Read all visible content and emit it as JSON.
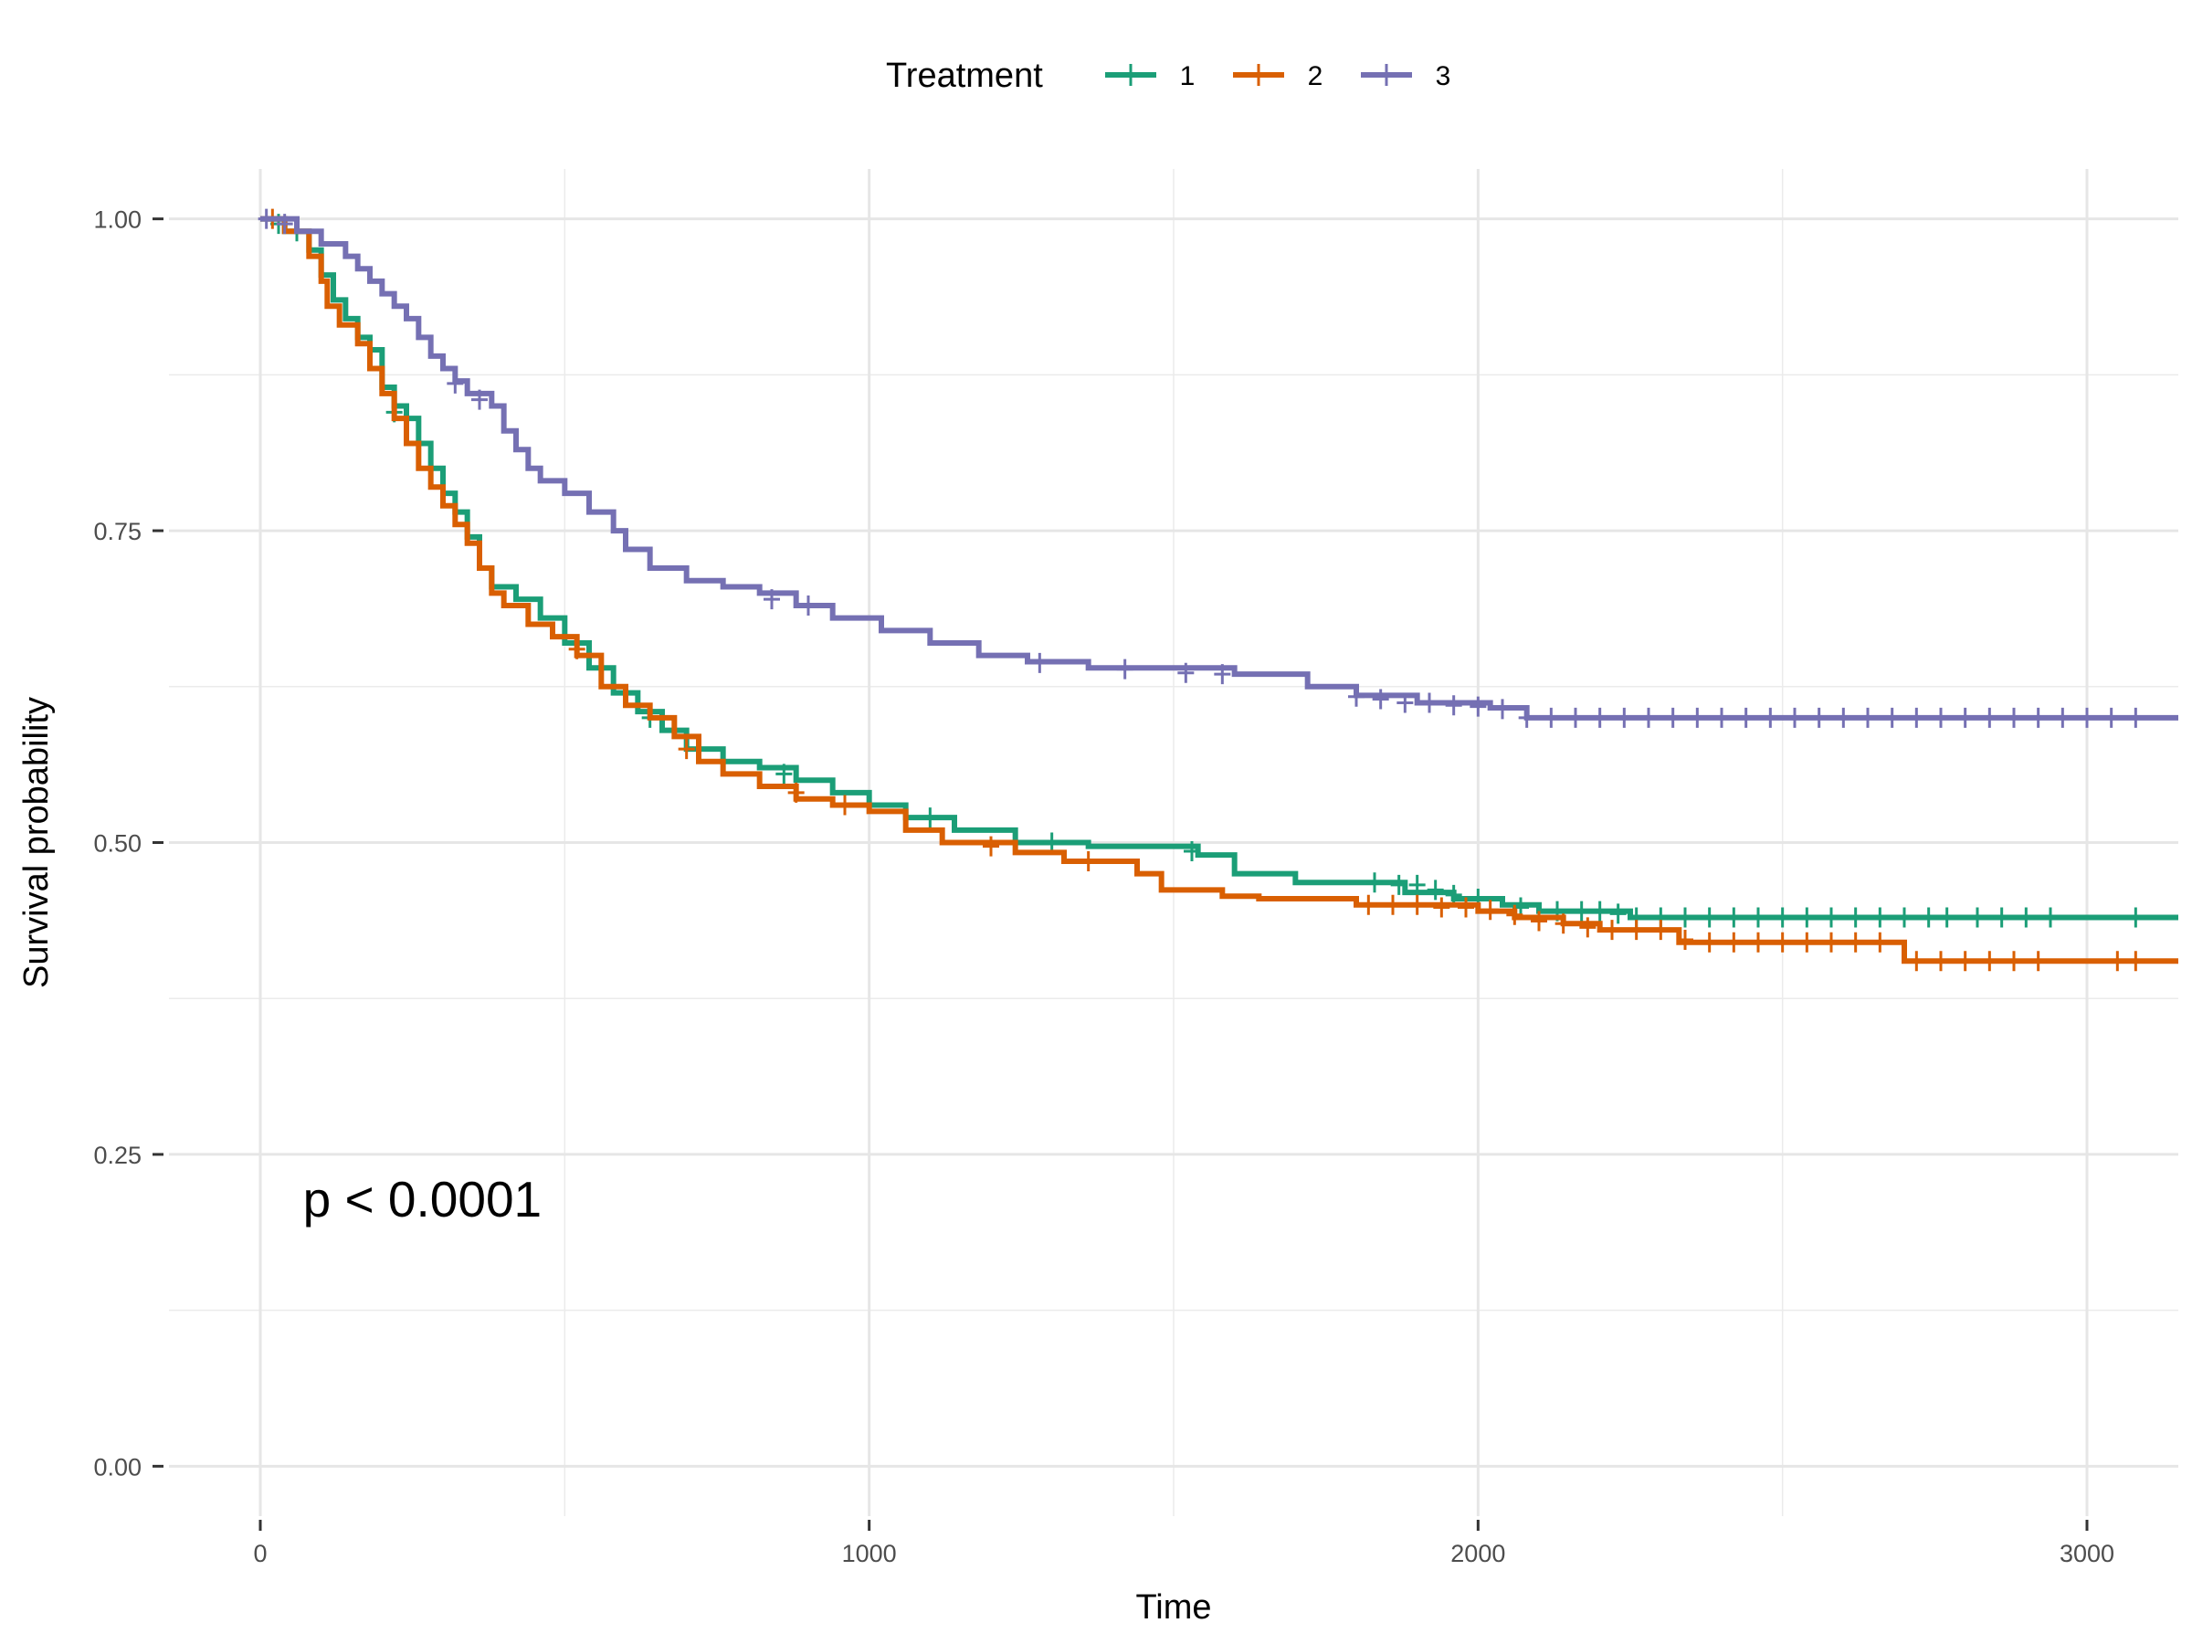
{
  "chart_data": {
    "type": "line",
    "subtype": "kaplan-meier-step",
    "xlabel": "Time",
    "ylabel": "Survival probability",
    "xlim": [
      -150,
      3150
    ],
    "ylim": [
      -0.04,
      1.04
    ],
    "x_ticks": [
      0,
      1000,
      2000,
      3000
    ],
    "x_tick_labels": [
      "0",
      "1000",
      "2000",
      "3000"
    ],
    "y_ticks": [
      0,
      0.25,
      0.5,
      0.75,
      1.0
    ],
    "y_tick_labels": [
      "0.00",
      "0.25",
      "0.50",
      "0.75",
      "1.00"
    ],
    "grid": true,
    "legend": {
      "title": "Treatment",
      "position": "top"
    },
    "annotation": {
      "text": "p < 0.0001",
      "x": 70,
      "y": 0.2
    },
    "series": [
      {
        "name": "1",
        "color": "#1b9e77",
        "points": [
          [
            0,
            1.0
          ],
          [
            40,
            0.99
          ],
          [
            80,
            0.975
          ],
          [
            100,
            0.955
          ],
          [
            120,
            0.935
          ],
          [
            140,
            0.92
          ],
          [
            160,
            0.905
          ],
          [
            180,
            0.895
          ],
          [
            200,
            0.865
          ],
          [
            220,
            0.85
          ],
          [
            240,
            0.84
          ],
          [
            260,
            0.82
          ],
          [
            280,
            0.8
          ],
          [
            300,
            0.78
          ],
          [
            320,
            0.765
          ],
          [
            340,
            0.745
          ],
          [
            360,
            0.72
          ],
          [
            380,
            0.705
          ],
          [
            420,
            0.695
          ],
          [
            460,
            0.68
          ],
          [
            500,
            0.66
          ],
          [
            540,
            0.64
          ],
          [
            580,
            0.62
          ],
          [
            620,
            0.605
          ],
          [
            660,
            0.59
          ],
          [
            700,
            0.575
          ],
          [
            760,
            0.565
          ],
          [
            820,
            0.56
          ],
          [
            880,
            0.55
          ],
          [
            940,
            0.54
          ],
          [
            1000,
            0.53
          ],
          [
            1060,
            0.52
          ],
          [
            1140,
            0.51
          ],
          [
            1240,
            0.5
          ],
          [
            1360,
            0.497
          ],
          [
            1540,
            0.49
          ],
          [
            1600,
            0.475
          ],
          [
            1700,
            0.468
          ],
          [
            1820,
            0.468
          ],
          [
            1880,
            0.46
          ],
          [
            1960,
            0.455
          ],
          [
            2040,
            0.45
          ],
          [
            2100,
            0.445
          ],
          [
            2250,
            0.44
          ],
          [
            3150,
            0.44
          ]
        ],
        "censors": [
          [
            30,
            0.996
          ],
          [
            60,
            0.99
          ],
          [
            220,
            0.845
          ],
          [
            640,
            0.6
          ],
          [
            860,
            0.555
          ],
          [
            1100,
            0.52
          ],
          [
            1300,
            0.5
          ],
          [
            1530,
            0.493
          ],
          [
            1830,
            0.468
          ],
          [
            1870,
            0.466
          ],
          [
            1900,
            0.466
          ],
          [
            1930,
            0.462
          ],
          [
            1960,
            0.458
          ],
          [
            2000,
            0.455
          ],
          [
            2070,
            0.448
          ],
          [
            2130,
            0.445
          ],
          [
            2170,
            0.445
          ],
          [
            2200,
            0.445
          ],
          [
            2230,
            0.443
          ],
          [
            2260,
            0.44
          ],
          [
            2300,
            0.44
          ],
          [
            2340,
            0.44
          ],
          [
            2380,
            0.44
          ],
          [
            2420,
            0.44
          ],
          [
            2460,
            0.44
          ],
          [
            2500,
            0.44
          ],
          [
            2540,
            0.44
          ],
          [
            2580,
            0.44
          ],
          [
            2620,
            0.44
          ],
          [
            2660,
            0.44
          ],
          [
            2700,
            0.44
          ],
          [
            2740,
            0.44
          ],
          [
            2770,
            0.44
          ],
          [
            2820,
            0.44
          ],
          [
            2860,
            0.44
          ],
          [
            2900,
            0.44
          ],
          [
            2940,
            0.44
          ],
          [
            3080,
            0.44
          ]
        ]
      },
      {
        "name": "2",
        "color": "#d95f02",
        "points": [
          [
            0,
            1.0
          ],
          [
            40,
            0.99
          ],
          [
            80,
            0.97
          ],
          [
            100,
            0.95
          ],
          [
            110,
            0.93
          ],
          [
            130,
            0.915
          ],
          [
            160,
            0.9
          ],
          [
            180,
            0.88
          ],
          [
            200,
            0.86
          ],
          [
            220,
            0.84
          ],
          [
            240,
            0.82
          ],
          [
            260,
            0.8
          ],
          [
            280,
            0.785
          ],
          [
            300,
            0.77
          ],
          [
            320,
            0.755
          ],
          [
            340,
            0.74
          ],
          [
            360,
            0.72
          ],
          [
            380,
            0.7
          ],
          [
            400,
            0.69
          ],
          [
            440,
            0.675
          ],
          [
            480,
            0.665
          ],
          [
            520,
            0.65
          ],
          [
            560,
            0.625
          ],
          [
            600,
            0.61
          ],
          [
            640,
            0.6
          ],
          [
            680,
            0.585
          ],
          [
            720,
            0.565
          ],
          [
            760,
            0.555
          ],
          [
            820,
            0.545
          ],
          [
            880,
            0.535
          ],
          [
            940,
            0.53
          ],
          [
            1000,
            0.525
          ],
          [
            1060,
            0.51
          ],
          [
            1120,
            0.5
          ],
          [
            1240,
            0.492
          ],
          [
            1320,
            0.485
          ],
          [
            1440,
            0.475
          ],
          [
            1480,
            0.462
          ],
          [
            1580,
            0.457
          ],
          [
            1640,
            0.455
          ],
          [
            1800,
            0.45
          ],
          [
            2000,
            0.445
          ],
          [
            2060,
            0.44
          ],
          [
            2140,
            0.435
          ],
          [
            2200,
            0.43
          ],
          [
            2330,
            0.42
          ],
          [
            2700,
            0.405
          ],
          [
            3150,
            0.405
          ]
        ],
        "censors": [
          [
            20,
            1.0
          ],
          [
            520,
            0.655
          ],
          [
            700,
            0.575
          ],
          [
            880,
            0.54
          ],
          [
            960,
            0.53
          ],
          [
            1200,
            0.497
          ],
          [
            1360,
            0.485
          ],
          [
            1820,
            0.45
          ],
          [
            1860,
            0.45
          ],
          [
            1900,
            0.45
          ],
          [
            1940,
            0.448
          ],
          [
            1980,
            0.448
          ],
          [
            2020,
            0.446
          ],
          [
            2060,
            0.442
          ],
          [
            2100,
            0.437
          ],
          [
            2140,
            0.435
          ],
          [
            2180,
            0.432
          ],
          [
            2220,
            0.43
          ],
          [
            2260,
            0.43
          ],
          [
            2300,
            0.43
          ],
          [
            2340,
            0.422
          ],
          [
            2380,
            0.42
          ],
          [
            2420,
            0.42
          ],
          [
            2460,
            0.42
          ],
          [
            2500,
            0.42
          ],
          [
            2540,
            0.42
          ],
          [
            2580,
            0.42
          ],
          [
            2620,
            0.42
          ],
          [
            2660,
            0.42
          ],
          [
            2720,
            0.405
          ],
          [
            2760,
            0.405
          ],
          [
            2800,
            0.405
          ],
          [
            2840,
            0.405
          ],
          [
            2880,
            0.405
          ],
          [
            2920,
            0.405
          ],
          [
            3050,
            0.405
          ],
          [
            3080,
            0.405
          ]
        ]
      },
      {
        "name": "3",
        "color": "#7570b3",
        "points": [
          [
            0,
            1.0
          ],
          [
            60,
            0.99
          ],
          [
            100,
            0.98
          ],
          [
            140,
            0.97
          ],
          [
            160,
            0.96
          ],
          [
            180,
            0.95
          ],
          [
            200,
            0.94
          ],
          [
            220,
            0.93
          ],
          [
            240,
            0.92
          ],
          [
            260,
            0.905
          ],
          [
            280,
            0.89
          ],
          [
            300,
            0.88
          ],
          [
            320,
            0.87
          ],
          [
            340,
            0.86
          ],
          [
            380,
            0.85
          ],
          [
            400,
            0.83
          ],
          [
            420,
            0.815
          ],
          [
            440,
            0.8
          ],
          [
            460,
            0.79
          ],
          [
            500,
            0.78
          ],
          [
            540,
            0.765
          ],
          [
            580,
            0.75
          ],
          [
            600,
            0.735
          ],
          [
            640,
            0.72
          ],
          [
            700,
            0.71
          ],
          [
            760,
            0.705
          ],
          [
            820,
            0.7
          ],
          [
            880,
            0.69
          ],
          [
            940,
            0.68
          ],
          [
            1020,
            0.67
          ],
          [
            1100,
            0.66
          ],
          [
            1180,
            0.65
          ],
          [
            1260,
            0.645
          ],
          [
            1360,
            0.64
          ],
          [
            1600,
            0.635
          ],
          [
            1720,
            0.625
          ],
          [
            1800,
            0.618
          ],
          [
            1900,
            0.612
          ],
          [
            2020,
            0.608
          ],
          [
            2080,
            0.6
          ],
          [
            3150,
            0.6
          ]
        ],
        "censors": [
          [
            10,
            1.0
          ],
          [
            40,
            0.996
          ],
          [
            320,
            0.868
          ],
          [
            360,
            0.855
          ],
          [
            840,
            0.695
          ],
          [
            900,
            0.69
          ],
          [
            1280,
            0.644
          ],
          [
            1420,
            0.639
          ],
          [
            1520,
            0.636
          ],
          [
            1580,
            0.635
          ],
          [
            1800,
            0.617
          ],
          [
            1840,
            0.615
          ],
          [
            1880,
            0.612
          ],
          [
            1920,
            0.612
          ],
          [
            1960,
            0.61
          ],
          [
            2000,
            0.609
          ],
          [
            2040,
            0.607
          ],
          [
            2080,
            0.6
          ],
          [
            2120,
            0.6
          ],
          [
            2160,
            0.6
          ],
          [
            2200,
            0.6
          ],
          [
            2240,
            0.6
          ],
          [
            2280,
            0.6
          ],
          [
            2320,
            0.6
          ],
          [
            2360,
            0.6
          ],
          [
            2400,
            0.6
          ],
          [
            2440,
            0.6
          ],
          [
            2480,
            0.6
          ],
          [
            2520,
            0.6
          ],
          [
            2560,
            0.6
          ],
          [
            2600,
            0.6
          ],
          [
            2640,
            0.6
          ],
          [
            2680,
            0.6
          ],
          [
            2720,
            0.6
          ],
          [
            2760,
            0.6
          ],
          [
            2800,
            0.6
          ],
          [
            2840,
            0.6
          ],
          [
            2880,
            0.6
          ],
          [
            2920,
            0.6
          ],
          [
            2960,
            0.6
          ],
          [
            3000,
            0.6
          ],
          [
            3040,
            0.6
          ],
          [
            3080,
            0.6
          ]
        ]
      }
    ]
  }
}
